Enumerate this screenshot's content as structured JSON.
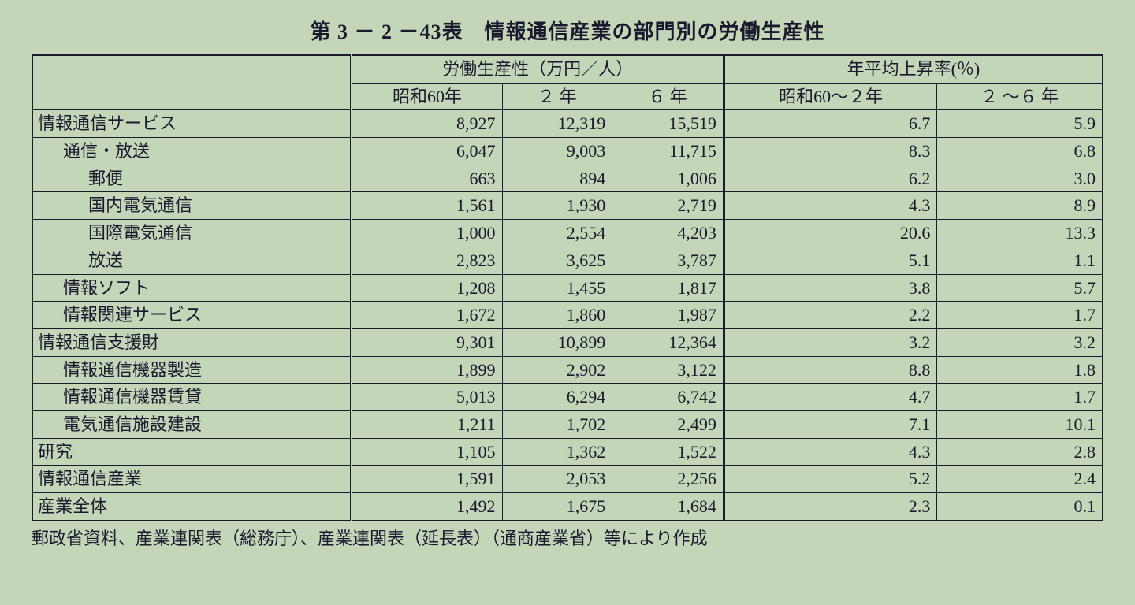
{
  "title": "第 3 － 2 －43表　情報通信産業の部門別の労働生産性",
  "headers": {
    "group1": "労働生産性（万円／人）",
    "group2": "年平均上昇率(％)",
    "col1": "昭和60年",
    "col2": "２ 年",
    "col3": "６ 年",
    "col4": "昭和60～２年",
    "col5": "２ ～６ 年"
  },
  "rows": [
    {
      "label": "情報通信サービス",
      "indent": 0,
      "v": [
        "8,927",
        "12,319",
        "15,519",
        "6.7",
        "5.9"
      ]
    },
    {
      "label": "通信・放送",
      "indent": 1,
      "v": [
        "6,047",
        "9,003",
        "11,715",
        "8.3",
        "6.8"
      ]
    },
    {
      "label": "郵便",
      "indent": 2,
      "v": [
        "663",
        "894",
        "1,006",
        "6.2",
        "3.0"
      ]
    },
    {
      "label": "国内電気通信",
      "indent": 2,
      "v": [
        "1,561",
        "1,930",
        "2,719",
        "4.3",
        "8.9"
      ]
    },
    {
      "label": "国際電気通信",
      "indent": 2,
      "v": [
        "1,000",
        "2,554",
        "4,203",
        "20.6",
        "13.3"
      ]
    },
    {
      "label": "放送",
      "indent": 2,
      "v": [
        "2,823",
        "3,625",
        "3,787",
        "5.1",
        "1.1"
      ]
    },
    {
      "label": "情報ソフト",
      "indent": 1,
      "v": [
        "1,208",
        "1,455",
        "1,817",
        "3.8",
        "5.7"
      ]
    },
    {
      "label": "情報関連サービス",
      "indent": 1,
      "v": [
        "1,672",
        "1,860",
        "1,987",
        "2.2",
        "1.7"
      ]
    },
    {
      "label": "情報通信支援財",
      "indent": 0,
      "v": [
        "9,301",
        "10,899",
        "12,364",
        "3.2",
        "3.2"
      ]
    },
    {
      "label": "情報通信機器製造",
      "indent": 1,
      "v": [
        "1,899",
        "2,902",
        "3,122",
        "8.8",
        "1.8"
      ]
    },
    {
      "label": "情報通信機器賃貸",
      "indent": 1,
      "v": [
        "5,013",
        "6,294",
        "6,742",
        "4.7",
        "1.7"
      ]
    },
    {
      "label": "電気通信施設建設",
      "indent": 1,
      "v": [
        "1,211",
        "1,702",
        "2,499",
        "7.1",
        "10.1"
      ]
    },
    {
      "label": "研究",
      "indent": 0,
      "v": [
        "1,105",
        "1,362",
        "1,522",
        "4.3",
        "2.8"
      ]
    },
    {
      "label": "情報通信産業",
      "indent": 0,
      "v": [
        "1,591",
        "2,053",
        "2,256",
        "5.2",
        "2.4"
      ]
    },
    {
      "label": "産業全体",
      "indent": 0,
      "v": [
        "1,492",
        "1,675",
        "1,684",
        "2.3",
        "0.1"
      ]
    }
  ],
  "footer": "郵政省資料、産業連関表（総務庁）、産業連関表（延長表）（通商産業省）等により作成",
  "style": {
    "background_color": "#c5d6b8",
    "text_color": "#1a1a2e",
    "border_color": "#1a1a2e",
    "title_fontsize": 26,
    "cell_fontsize": 22,
    "font_family": "MS Mincho"
  }
}
